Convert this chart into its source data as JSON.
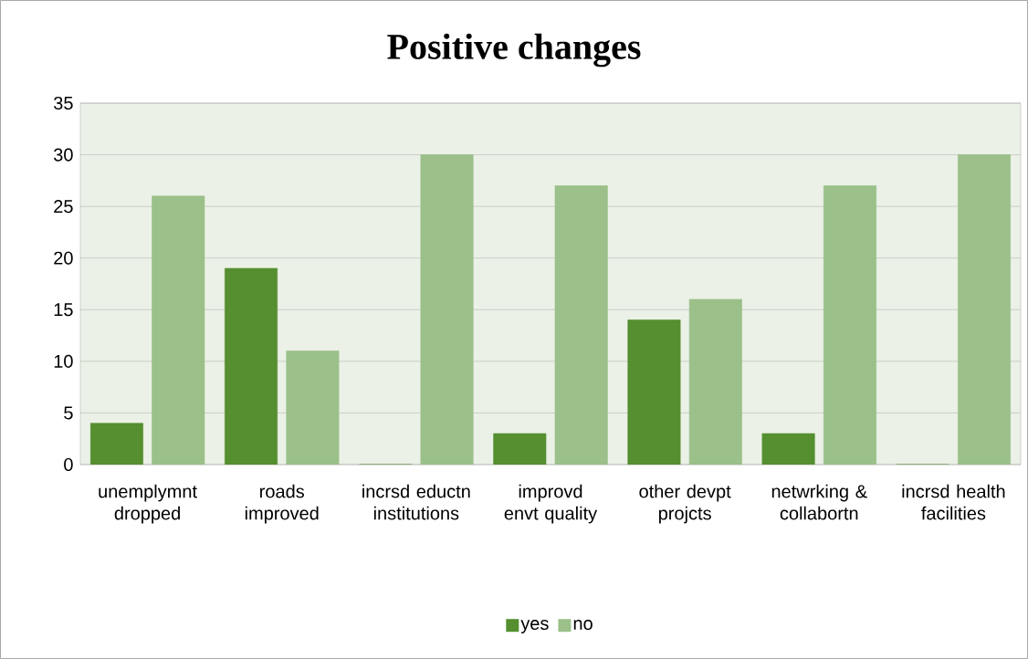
{
  "chart_data": {
    "type": "bar",
    "title": "Positive changes",
    "categories": [
      "unemplymnt dropped",
      "roads improved",
      "incrsd eductn institutions",
      "improvd envt quality",
      "other devpt projcts",
      "netwrking & collabortn",
      "incrsd health facilities"
    ],
    "series": [
      {
        "name": "yes",
        "color": "#558f2f",
        "values": [
          4,
          19,
          0,
          3,
          14,
          3,
          0
        ]
      },
      {
        "name": "no",
        "color": "#9bc08a",
        "values": [
          26,
          11,
          30,
          27,
          16,
          27,
          30
        ]
      }
    ],
    "ylim": [
      0,
      35
    ],
    "yticks": [
      0,
      5,
      10,
      15,
      20,
      25,
      30,
      35
    ],
    "grid": "y",
    "legend": "bottom"
  }
}
